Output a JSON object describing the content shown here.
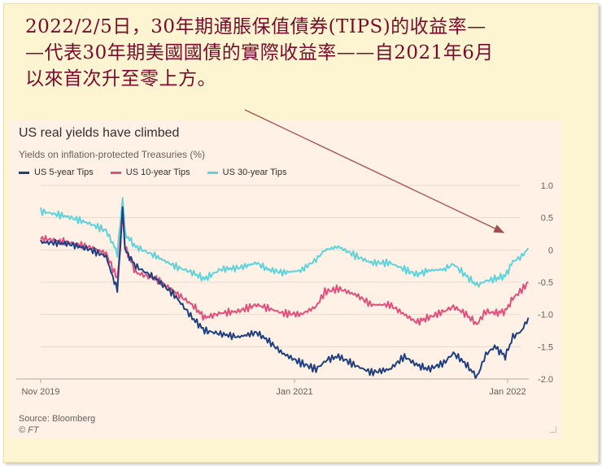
{
  "caption": {
    "text": "2022/2/5日，30年期通脹保值債券(TIPS)的收益率—\n—代表30年期美國國債的實際收益率——自2021年6月\n以來首次升至零上方。"
  },
  "colors": {
    "caption_text": "#7a0a2c",
    "panel_background": "#fff1e5",
    "outer_background": "#fdf5d2",
    "arrow": "#a05050"
  },
  "chart_data": {
    "type": "line",
    "title": "US real yields have climbed",
    "subtitle": "Yields on inflation-protected Treasuries (%)",
    "xlabel": "",
    "ylabel": "",
    "x_tick_labels": [
      "Nov 2019",
      "Jan 2021",
      "Jan 2022"
    ],
    "x_range": [
      "2019-11-01",
      "2022-02-05"
    ],
    "y_ticks": [
      1.0,
      0.5,
      0,
      -0.5,
      -1.0,
      -1.5,
      -2.0
    ],
    "y_tick_labels": [
      "1.0",
      "0.5",
      "0",
      "-0.5",
      "-1.0",
      "-1.5",
      "-2.0"
    ],
    "ylim": [
      -2.0,
      1.0
    ],
    "y_axis_position": "right",
    "grid": true,
    "legend_position": "top-left",
    "source": "Source: Bloomberg",
    "credit": "© FT",
    "series": [
      {
        "name": "US 5-year Tips",
        "color": "#1e3f80",
        "points": [
          [
            "2019-11-01",
            0.12
          ],
          [
            "2019-12-15",
            0.1
          ],
          [
            "2020-01-20",
            0.02
          ],
          [
            "2020-02-20",
            -0.1
          ],
          [
            "2020-03-05",
            -0.5
          ],
          [
            "2020-03-10",
            -0.62
          ],
          [
            "2020-03-15",
            0.05
          ],
          [
            "2020-03-19",
            0.68
          ],
          [
            "2020-03-23",
            0.0
          ],
          [
            "2020-04-10",
            -0.25
          ],
          [
            "2020-05-15",
            -0.45
          ],
          [
            "2020-06-15",
            -0.7
          ],
          [
            "2020-07-15",
            -1.05
          ],
          [
            "2020-08-05",
            -1.25
          ],
          [
            "2020-09-01",
            -1.3
          ],
          [
            "2020-10-01",
            -1.35
          ],
          [
            "2020-11-01",
            -1.28
          ],
          [
            "2020-11-20",
            -1.4
          ],
          [
            "2020-12-15",
            -1.6
          ],
          [
            "2021-01-15",
            -1.75
          ],
          [
            "2021-02-10",
            -1.85
          ],
          [
            "2021-03-01",
            -1.7
          ],
          [
            "2021-03-20",
            -1.65
          ],
          [
            "2021-04-20",
            -1.8
          ],
          [
            "2021-05-15",
            -1.9
          ],
          [
            "2021-06-15",
            -1.85
          ],
          [
            "2021-07-10",
            -1.65
          ],
          [
            "2021-07-30",
            -1.78
          ],
          [
            "2021-08-20",
            -1.85
          ],
          [
            "2021-09-15",
            -1.75
          ],
          [
            "2021-10-01",
            -1.6
          ],
          [
            "2021-10-20",
            -1.75
          ],
          [
            "2021-11-10",
            -1.97
          ],
          [
            "2021-11-25",
            -1.62
          ],
          [
            "2021-12-10",
            -1.5
          ],
          [
            "2021-12-28",
            -1.65
          ],
          [
            "2022-01-10",
            -1.35
          ],
          [
            "2022-01-25",
            -1.25
          ],
          [
            "2022-02-05",
            -1.05
          ]
        ]
      },
      {
        "name": "US 10-year Tips",
        "color": "#e0507c",
        "points": [
          [
            "2019-11-01",
            0.18
          ],
          [
            "2019-12-15",
            0.12
          ],
          [
            "2020-01-20",
            0.05
          ],
          [
            "2020-02-20",
            -0.05
          ],
          [
            "2020-03-05",
            -0.35
          ],
          [
            "2020-03-10",
            -0.45
          ],
          [
            "2020-03-15",
            0.1
          ],
          [
            "2020-03-19",
            0.6
          ],
          [
            "2020-03-23",
            0.05
          ],
          [
            "2020-04-10",
            -0.35
          ],
          [
            "2020-05-15",
            -0.45
          ],
          [
            "2020-06-15",
            -0.65
          ],
          [
            "2020-07-15",
            -0.85
          ],
          [
            "2020-08-05",
            -1.05
          ],
          [
            "2020-09-01",
            -0.98
          ],
          [
            "2020-10-01",
            -0.95
          ],
          [
            "2020-11-01",
            -0.85
          ],
          [
            "2020-11-20",
            -0.9
          ],
          [
            "2020-12-15",
            -0.98
          ],
          [
            "2021-01-15",
            -1.0
          ],
          [
            "2021-02-10",
            -0.88
          ],
          [
            "2021-02-25",
            -0.65
          ],
          [
            "2021-03-20",
            -0.6
          ],
          [
            "2021-04-20",
            -0.7
          ],
          [
            "2021-05-15",
            -0.85
          ],
          [
            "2021-06-15",
            -0.85
          ],
          [
            "2021-07-10",
            -1.0
          ],
          [
            "2021-07-30",
            -1.12
          ],
          [
            "2021-08-20",
            -1.05
          ],
          [
            "2021-09-15",
            -0.95
          ],
          [
            "2021-10-01",
            -0.88
          ],
          [
            "2021-10-20",
            -0.98
          ],
          [
            "2021-11-10",
            -1.15
          ],
          [
            "2021-11-25",
            -0.95
          ],
          [
            "2021-12-10",
            -0.98
          ],
          [
            "2021-12-28",
            -0.95
          ],
          [
            "2022-01-10",
            -0.75
          ],
          [
            "2022-01-25",
            -0.62
          ],
          [
            "2022-02-05",
            -0.5
          ]
        ]
      },
      {
        "name": "US 30-year Tips",
        "color": "#5ed3dc",
        "points": [
          [
            "2019-11-01",
            0.6
          ],
          [
            "2019-12-15",
            0.52
          ],
          [
            "2020-01-20",
            0.42
          ],
          [
            "2020-02-20",
            0.3
          ],
          [
            "2020-03-05",
            0.05
          ],
          [
            "2020-03-10",
            -0.05
          ],
          [
            "2020-03-15",
            0.4
          ],
          [
            "2020-03-19",
            0.78
          ],
          [
            "2020-03-23",
            0.25
          ],
          [
            "2020-04-10",
            0.05
          ],
          [
            "2020-05-15",
            -0.1
          ],
          [
            "2020-06-15",
            -0.25
          ],
          [
            "2020-07-15",
            -0.35
          ],
          [
            "2020-08-05",
            -0.45
          ],
          [
            "2020-09-01",
            -0.3
          ],
          [
            "2020-10-01",
            -0.28
          ],
          [
            "2020-11-01",
            -0.2
          ],
          [
            "2020-11-20",
            -0.3
          ],
          [
            "2020-12-15",
            -0.35
          ],
          [
            "2021-01-15",
            -0.32
          ],
          [
            "2021-02-10",
            -0.15
          ],
          [
            "2021-02-25",
            0.0
          ],
          [
            "2021-03-20",
            0.05
          ],
          [
            "2021-04-20",
            -0.1
          ],
          [
            "2021-05-15",
            -0.2
          ],
          [
            "2021-06-15",
            -0.2
          ],
          [
            "2021-07-10",
            -0.3
          ],
          [
            "2021-07-30",
            -0.38
          ],
          [
            "2021-08-20",
            -0.32
          ],
          [
            "2021-09-15",
            -0.3
          ],
          [
            "2021-10-01",
            -0.22
          ],
          [
            "2021-10-20",
            -0.38
          ],
          [
            "2021-11-10",
            -0.55
          ],
          [
            "2021-11-25",
            -0.48
          ],
          [
            "2021-12-10",
            -0.45
          ],
          [
            "2021-12-28",
            -0.4
          ],
          [
            "2022-01-10",
            -0.18
          ],
          [
            "2022-01-25",
            -0.1
          ],
          [
            "2022-02-05",
            0.03
          ]
        ]
      }
    ]
  }
}
